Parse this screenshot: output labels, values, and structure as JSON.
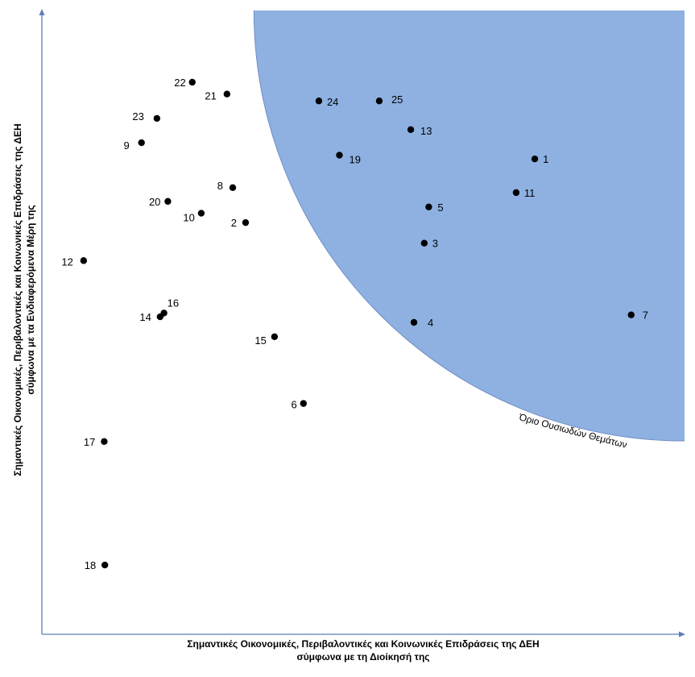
{
  "chart_data": {
    "type": "scatter",
    "title": "",
    "xlabel_lines": [
      "Σημαντικές Οικονομικές, Περιβαλοντικές και Κοινωνικές Επιδράσεις της ΔΕΗ",
      "σύμφωνα με τη Διοίκησή της"
    ],
    "ylabel_lines": [
      "Σημαντικές Οικονομικές, Περιβαλοντικές και Κοινωνικές Επιδράσεις της ΔΕΗ",
      "σύμφωνα με τα Ενδιαφερόμενα Μέρη της"
    ],
    "xlim": [
      0,
      100
    ],
    "ylim": [
      0,
      100
    ],
    "grid": false,
    "ticks": false,
    "materiality_region": {
      "label": "Όριο Ουσιωδών Θεμάτων",
      "color": "#8eb1e2",
      "border_color": "#6f8fc0",
      "center": [
        100,
        100
      ],
      "radius_x": 67,
      "radius_y": 69
    },
    "colors": {
      "point": "#000000",
      "axis": "#5b7fb8"
    },
    "points": [
      {
        "id": "1",
        "x": 76.7,
        "y": 76.2
      },
      {
        "id": "2",
        "x": 31.7,
        "y": 66.0
      },
      {
        "id": "3",
        "x": 59.5,
        "y": 62.7
      },
      {
        "id": "4",
        "x": 57.9,
        "y": 50.0
      },
      {
        "id": "5",
        "x": 60.2,
        "y": 68.5
      },
      {
        "id": "6",
        "x": 40.7,
        "y": 37.0
      },
      {
        "id": "7",
        "x": 91.7,
        "y": 51.2
      },
      {
        "id": "8",
        "x": 29.7,
        "y": 71.6
      },
      {
        "id": "9",
        "x": 15.5,
        "y": 78.8
      },
      {
        "id": "10",
        "x": 24.8,
        "y": 67.5
      },
      {
        "id": "11",
        "x": 73.8,
        "y": 70.8
      },
      {
        "id": "12",
        "x": 6.5,
        "y": 59.9
      },
      {
        "id": "13",
        "x": 57.4,
        "y": 80.9
      },
      {
        "id": "14",
        "x": 18.4,
        "y": 50.9
      },
      {
        "id": "15",
        "x": 36.2,
        "y": 47.7
      },
      {
        "id": "16",
        "x": 19.0,
        "y": 51.5
      },
      {
        "id": "17",
        "x": 9.7,
        "y": 30.9
      },
      {
        "id": "18",
        "x": 9.8,
        "y": 11.1
      },
      {
        "id": "19",
        "x": 46.3,
        "y": 76.8
      },
      {
        "id": "20",
        "x": 19.6,
        "y": 69.4
      },
      {
        "id": "21",
        "x": 28.8,
        "y": 86.6
      },
      {
        "id": "22",
        "x": 23.4,
        "y": 88.5
      },
      {
        "id": "23",
        "x": 17.9,
        "y": 82.7
      },
      {
        "id": "24",
        "x": 43.1,
        "y": 85.5
      },
      {
        "id": "25",
        "x": 52.5,
        "y": 85.5
      }
    ]
  }
}
